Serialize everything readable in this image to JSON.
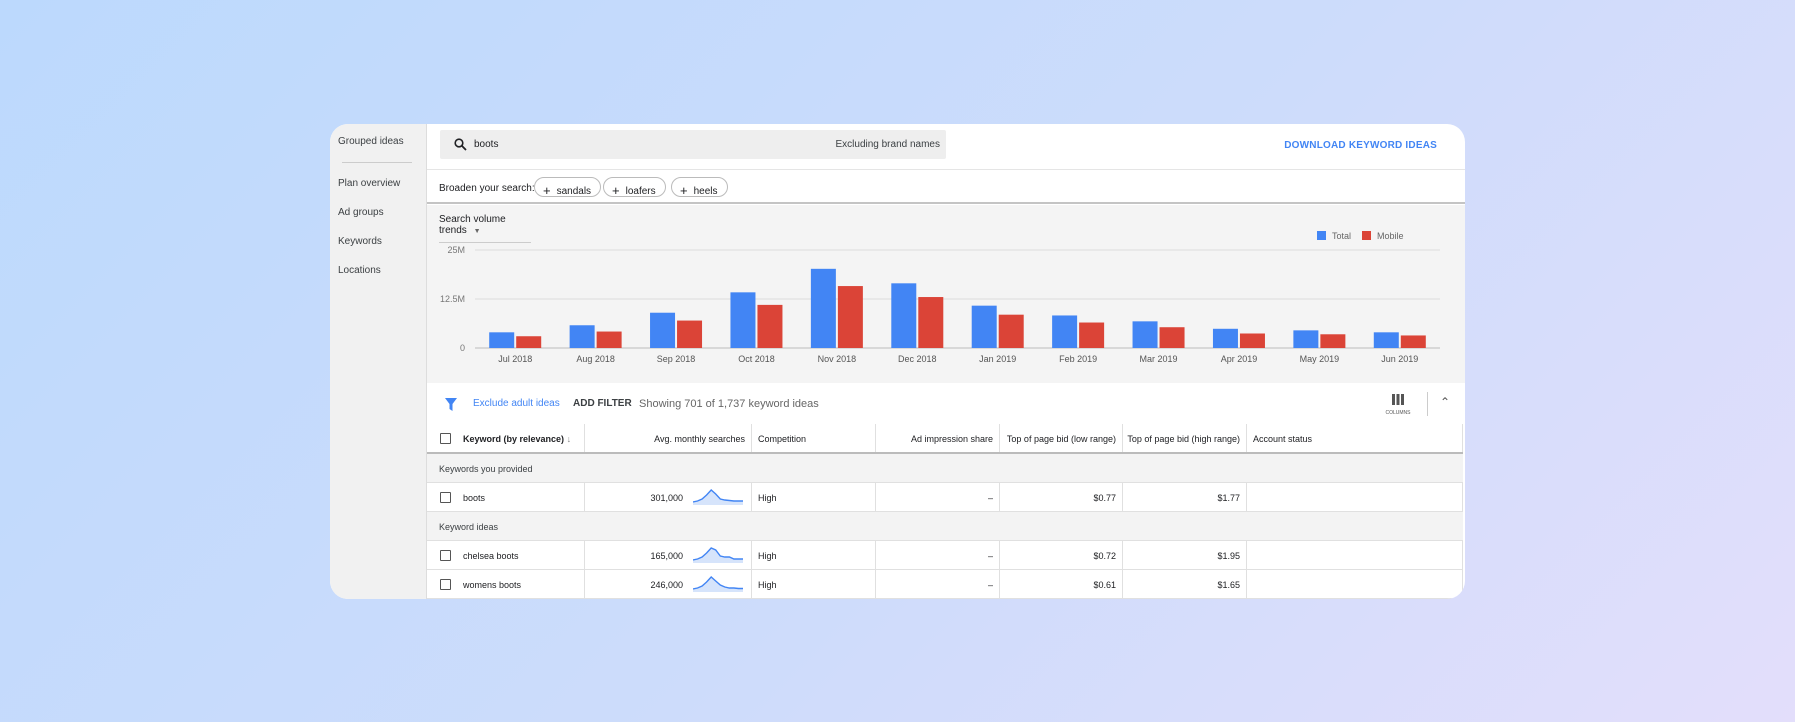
{
  "sidebar": {
    "items": [
      {
        "label": "Grouped ideas"
      },
      {
        "label": "Plan overview"
      },
      {
        "label": "Ad groups"
      },
      {
        "label": "Keywords"
      },
      {
        "label": "Locations"
      }
    ]
  },
  "search": {
    "query": "boots",
    "exclusion": "Excluding brand names",
    "icon": "search-icon"
  },
  "download_label": "DOWNLOAD KEYWORD IDEAS",
  "broaden": {
    "label": "Broaden your search:",
    "chips": [
      "sandals",
      "loafers",
      "heels"
    ]
  },
  "trend_selector": "Search volume trends",
  "colors": {
    "total": "#4285f4",
    "mobile": "#db4437",
    "accent": "#4285f4"
  },
  "chart_data": {
    "type": "bar",
    "categories": [
      "Jul 2018",
      "Aug 2018",
      "Sep 2018",
      "Oct 2018",
      "Nov 2018",
      "Dec 2018",
      "Jan 2019",
      "Feb 2019",
      "Mar 2019",
      "Apr 2019",
      "May 2019",
      "Jun 2019"
    ],
    "series": [
      {
        "name": "Total",
        "values": [
          4.0,
          5.8,
          9.0,
          14.2,
          20.2,
          16.5,
          10.8,
          8.3,
          6.8,
          4.9,
          4.5,
          4.0
        ]
      },
      {
        "name": "Mobile",
        "values": [
          3.0,
          4.2,
          7.0,
          11.0,
          15.8,
          13.0,
          8.5,
          6.5,
          5.3,
          3.7,
          3.5,
          3.2
        ]
      }
    ],
    "unit": "M",
    "ylim": [
      0,
      25
    ],
    "yticks": [
      "0",
      "12.5M",
      "25M"
    ],
    "grid": true,
    "legend": "top-right"
  },
  "filter": {
    "exclude": "Exclude adult ideas",
    "add": "ADD FILTER",
    "showing": "Showing 701 of 1,737 keyword ideas",
    "columns": "COLUMNS"
  },
  "table": {
    "headers": [
      "Keyword (by relevance)",
      "Avg. monthly searches",
      "Competition",
      "Ad impression share",
      "Top of page bid (low range)",
      "Top of page bid (high range)",
      "Account status"
    ],
    "groups": [
      {
        "label": "Keywords you provided",
        "rows": [
          {
            "keyword": "boots",
            "searches": "301,000",
            "trend": [
              2,
              3,
              5,
              9,
              14,
              10,
              5,
              4,
              3.5,
              3,
              3,
              3
            ],
            "competition": "High",
            "impr": "–",
            "low": "$0.77",
            "high": "$1.77",
            "status": ""
          }
        ]
      },
      {
        "label": "Keyword ideas",
        "rows": [
          {
            "keyword": "chelsea boots",
            "searches": "165,000",
            "trend": [
              2,
              3,
              5,
              9,
              14,
              12,
              6,
              5,
              5,
              3,
              3,
              3
            ],
            "competition": "High",
            "impr": "–",
            "low": "$0.72",
            "high": "$1.95",
            "status": ""
          },
          {
            "keyword": "womens boots",
            "searches": "246,000",
            "trend": [
              2,
              3,
              5,
              9,
              14,
              10,
              6,
              4,
              3,
              3,
              2.5,
              2.5
            ],
            "competition": "High",
            "impr": "–",
            "low": "$0.61",
            "high": "$1.65",
            "status": ""
          }
        ]
      }
    ]
  }
}
